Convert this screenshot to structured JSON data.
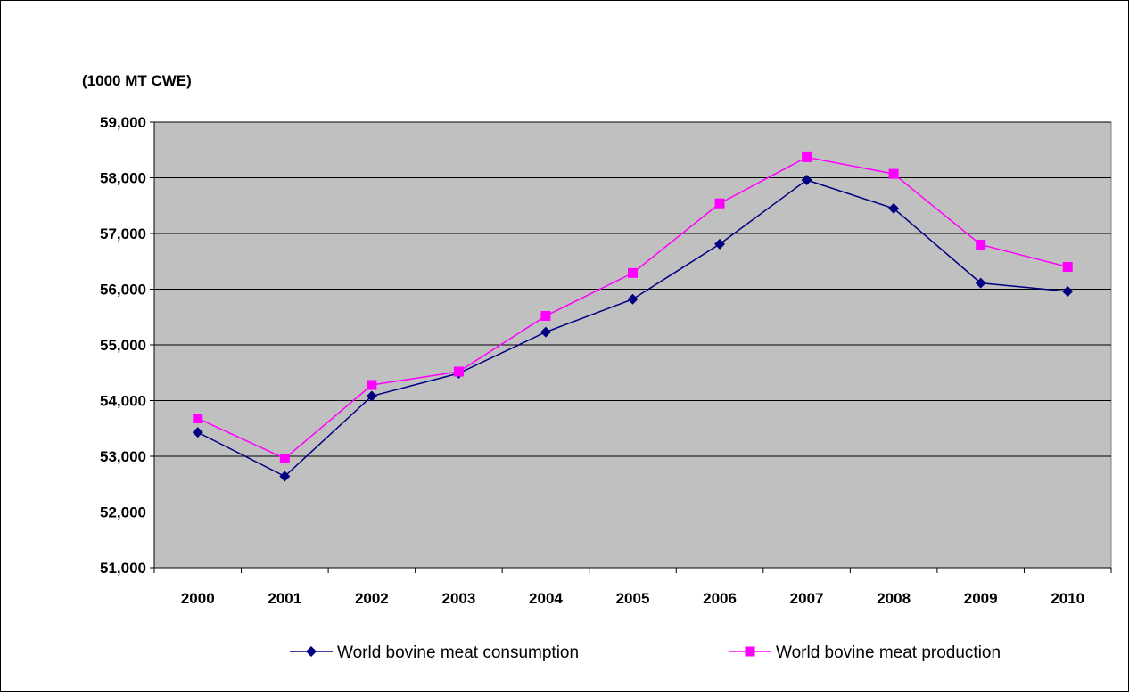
{
  "chart_data": {
    "type": "line",
    "unit_label": "(1000 MT CWE)",
    "categories": [
      "2000",
      "2001",
      "2002",
      "2003",
      "2004",
      "2005",
      "2006",
      "2007",
      "2008",
      "2009",
      "2010"
    ],
    "ylim": [
      51000,
      59000
    ],
    "y_ticks": [
      51000,
      52000,
      53000,
      54000,
      55000,
      56000,
      57000,
      58000,
      59000
    ],
    "y_tick_labels": [
      "51,000",
      "52,000",
      "53,000",
      "54,000",
      "55,000",
      "56,000",
      "57,000",
      "58,000",
      "59,000"
    ],
    "grid": true,
    "legend_position": "bottom",
    "plot_background": "#c0c0c0",
    "series": [
      {
        "name": "World bovine meat consumption",
        "color": "#000080",
        "marker": "diamond",
        "values": [
          53430,
          52640,
          54080,
          54490,
          55230,
          55820,
          56810,
          57960,
          57450,
          56110,
          55960
        ]
      },
      {
        "name": "World bovine meat production",
        "color": "#ff00ff",
        "marker": "square",
        "values": [
          53680,
          52960,
          54280,
          54520,
          55520,
          56290,
          57540,
          58370,
          58070,
          56800,
          56400
        ]
      }
    ]
  }
}
